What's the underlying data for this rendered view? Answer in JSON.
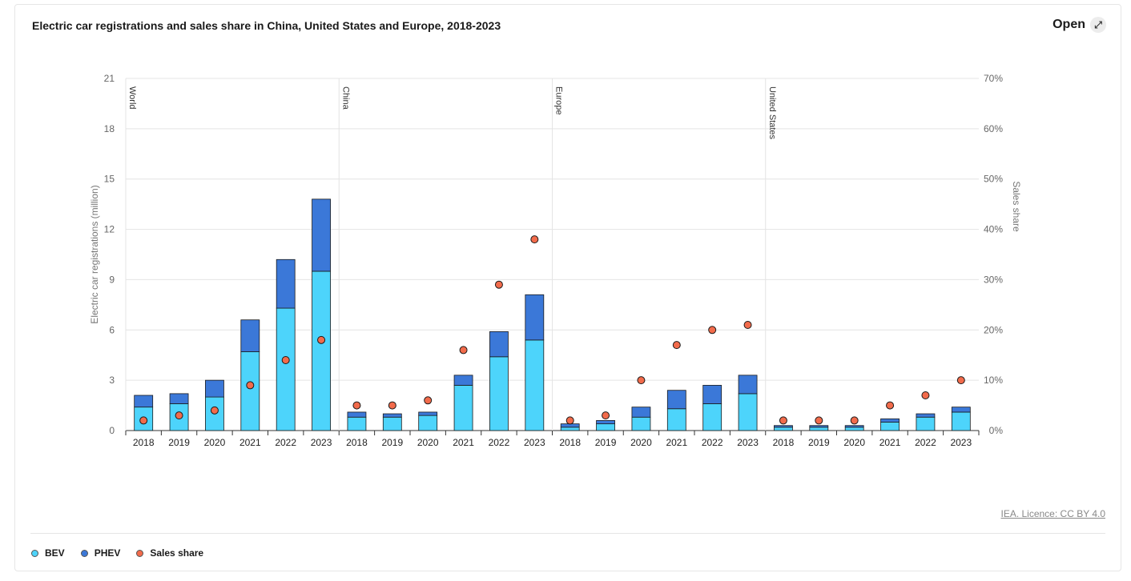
{
  "header": {
    "title": "Electric car registrations and sales share in China, United States and Europe, 2018-2023",
    "open_label": "Open",
    "open_icon": "external-arrow-icon"
  },
  "footer": {
    "licence": "IEA. Licence: CC BY 4.0"
  },
  "legend": [
    {
      "label": "BEV",
      "color": "#4dd4fb"
    },
    {
      "label": "PHEV",
      "color": "#3b78d8"
    },
    {
      "label": "Sales share",
      "color": "#f26b4b"
    }
  ],
  "chart_data": {
    "type": "bar",
    "stacked": true,
    "title": "Electric car registrations and sales share in China, United States and Europe, 2018-2023",
    "ylabel": "Electric car registrations (million)",
    "y2label": "Sales share",
    "ylim": [
      0,
      21
    ],
    "y_ticks": [
      "0",
      "3",
      "6",
      "9",
      "12",
      "15",
      "18",
      "21"
    ],
    "y2lim": [
      0,
      70
    ],
    "y2_ticks": [
      "0%",
      "10%",
      "20%",
      "30%",
      "40%",
      "50%",
      "60%",
      "70%"
    ],
    "grid": true,
    "legend_position": "bottom-left",
    "colors": {
      "BEV": "#4dd4fb",
      "PHEV": "#3b78d8",
      "Sales share": "#f26b4b"
    },
    "groups": [
      {
        "name": "World",
        "categories": [
          "2018",
          "2019",
          "2020",
          "2021",
          "2022",
          "2023"
        ],
        "series": [
          {
            "name": "BEV",
            "values": [
              1.4,
              1.6,
              2.0,
              4.7,
              7.3,
              9.5
            ]
          },
          {
            "name": "PHEV",
            "values": [
              0.7,
              0.6,
              1.0,
              1.9,
              2.9,
              4.3
            ]
          },
          {
            "name": "Sales share",
            "values": [
              2,
              3,
              4,
              9,
              14,
              18
            ]
          }
        ]
      },
      {
        "name": "China",
        "categories": [
          "2018",
          "2019",
          "2020",
          "2021",
          "2022",
          "2023"
        ],
        "series": [
          {
            "name": "BEV",
            "values": [
              0.8,
              0.8,
              0.9,
              2.7,
              4.4,
              5.4
            ]
          },
          {
            "name": "PHEV",
            "values": [
              0.3,
              0.2,
              0.2,
              0.6,
              1.5,
              2.7
            ]
          },
          {
            "name": "Sales share",
            "values": [
              5,
              5,
              6,
              16,
              29,
              38
            ]
          }
        ]
      },
      {
        "name": "Europe",
        "categories": [
          "2018",
          "2019",
          "2020",
          "2021",
          "2022",
          "2023"
        ],
        "series": [
          {
            "name": "BEV",
            "values": [
              0.2,
              0.4,
              0.8,
              1.3,
              1.6,
              2.2
            ]
          },
          {
            "name": "PHEV",
            "values": [
              0.2,
              0.2,
              0.6,
              1.1,
              1.1,
              1.1
            ]
          },
          {
            "name": "Sales share",
            "values": [
              2,
              3,
              10,
              17,
              20,
              21
            ]
          }
        ]
      },
      {
        "name": "United States",
        "categories": [
          "2018",
          "2019",
          "2020",
          "2021",
          "2022",
          "2023"
        ],
        "series": [
          {
            "name": "BEV",
            "values": [
              0.2,
              0.2,
              0.2,
              0.5,
              0.8,
              1.1
            ]
          },
          {
            "name": "PHEV",
            "values": [
              0.1,
              0.1,
              0.1,
              0.2,
              0.2,
              0.3
            ]
          },
          {
            "name": "Sales share",
            "values": [
              2,
              2,
              2,
              5,
              7,
              10
            ]
          }
        ]
      }
    ]
  }
}
